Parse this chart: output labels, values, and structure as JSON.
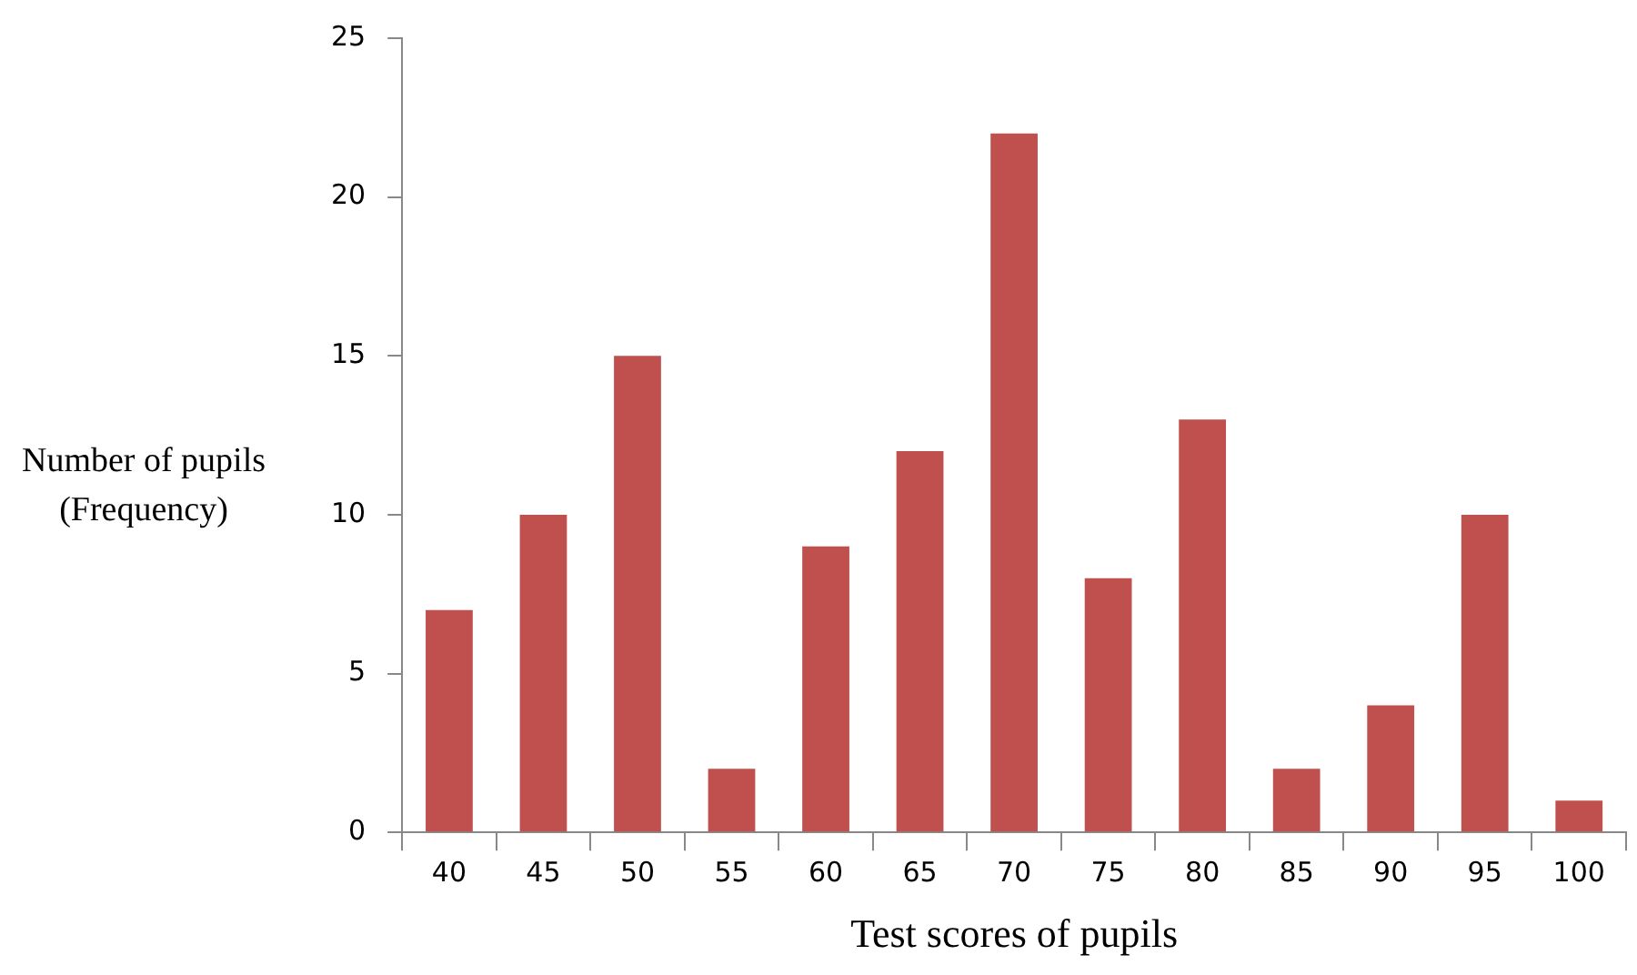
{
  "chart_data": {
    "type": "bar",
    "xlabel": "Test scores of pupils",
    "ylabel": "Number of pupils (Frequency)",
    "categories": [
      "40",
      "45",
      "50",
      "55",
      "60",
      "65",
      "70",
      "75",
      "80",
      "85",
      "90",
      "95",
      "100"
    ],
    "values": [
      7,
      10,
      15,
      2,
      9,
      12,
      22,
      8,
      13,
      2,
      4,
      10,
      1
    ],
    "color": "#c0504d",
    "ylim": [
      0,
      25
    ],
    "yticks": [
      0,
      5,
      10,
      15,
      20,
      25
    ],
    "grid": false,
    "legend": false
  }
}
